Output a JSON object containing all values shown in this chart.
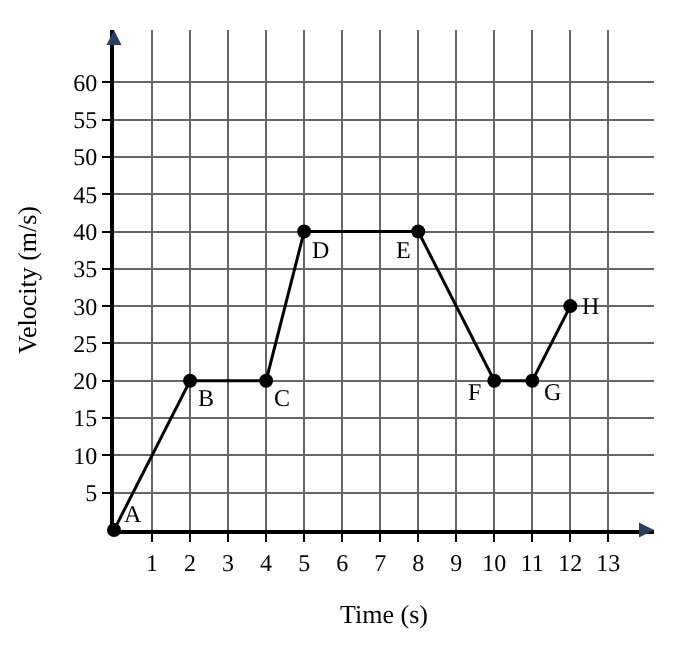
{
  "chart_data": {
    "type": "line",
    "xlabel": "Time (s)",
    "ylabel": "Velocity (m/s)",
    "x": [
      0,
      2,
      4,
      5,
      8,
      10,
      11,
      12
    ],
    "series": [
      {
        "color": "#000000",
        "values": [
          0,
          20,
          20,
          40,
          40,
          20,
          20,
          30
        ]
      }
    ],
    "marker": "circle",
    "line_style": "solid",
    "grid": true,
    "xlim": [
      0,
      14.2
    ],
    "ylim": [
      0,
      67
    ],
    "xticks": [
      1,
      2,
      3,
      4,
      5,
      6,
      7,
      8,
      9,
      10,
      11,
      12,
      13
    ],
    "yticks": [
      5,
      10,
      15,
      20,
      25,
      30,
      35,
      40,
      45,
      50,
      55,
      60
    ],
    "annotations": [
      {
        "text": "A",
        "x": 0,
        "y": 0
      },
      {
        "text": "B",
        "x": 2,
        "y": 20
      },
      {
        "text": "C",
        "x": 4,
        "y": 20
      },
      {
        "text": "D",
        "x": 5,
        "y": 40
      },
      {
        "text": "E",
        "x": 8,
        "y": 40
      },
      {
        "text": "F",
        "x": 10,
        "y": 20
      },
      {
        "text": "G",
        "x": 11,
        "y": 20
      },
      {
        "text": "H",
        "x": 12,
        "y": 30
      }
    ]
  }
}
